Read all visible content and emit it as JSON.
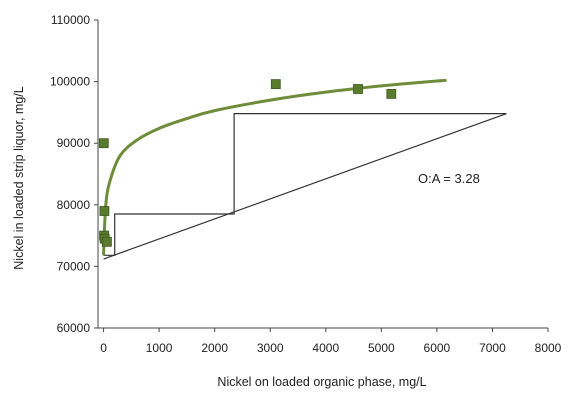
{
  "chart_data": {
    "type": "scatter",
    "title": "",
    "xlabel": "Nickel on loaded organic phase, mg/L",
    "ylabel": "Nickel in loaded strip liquor, mg/L",
    "xlim": [
      -100,
      8000
    ],
    "ylim": [
      60000,
      110000
    ],
    "x_ticks": [
      0,
      1000,
      2000,
      3000,
      4000,
      5000,
      6000,
      7000,
      8000
    ],
    "y_ticks": [
      60000,
      70000,
      80000,
      90000,
      100000,
      110000
    ],
    "grid": false,
    "legend": "none",
    "annotation": "O:A = 3.28",
    "colors": {
      "marker_fill": "#5a7a2e",
      "marker_edge": "#3f5a1e",
      "curve": "#6e8c3a",
      "lines": "#333333"
    },
    "series": [
      {
        "kind": "markers",
        "points": [
          [
            5,
            90000
          ],
          [
            15,
            79000
          ],
          [
            10,
            75000
          ],
          [
            20,
            74500
          ],
          [
            60,
            74000
          ],
          [
            3100,
            99600
          ],
          [
            4580,
            98800
          ],
          [
            5180,
            98000
          ]
        ]
      },
      {
        "kind": "fit-curve",
        "points": [
          [
            0,
            72000
          ],
          [
            40,
            80000
          ],
          [
            120,
            84000
          ],
          [
            300,
            88000
          ],
          [
            600,
            90500
          ],
          [
            1000,
            92400
          ],
          [
            1500,
            94000
          ],
          [
            2000,
            95300
          ],
          [
            3000,
            97000
          ],
          [
            4000,
            98300
          ],
          [
            5000,
            99300
          ],
          [
            6000,
            100100
          ],
          [
            6150,
            100200
          ]
        ]
      },
      {
        "kind": "operating-line",
        "points": [
          [
            0,
            71200
          ],
          [
            7250,
            94800
          ]
        ]
      },
      {
        "kind": "stage-steps",
        "points": [
          [
            7250,
            94800
          ],
          [
            2350,
            94800
          ],
          [
            2350,
            78500
          ],
          [
            200,
            78500
          ],
          [
            200,
            71800
          ],
          [
            0,
            71800
          ]
        ]
      }
    ]
  }
}
